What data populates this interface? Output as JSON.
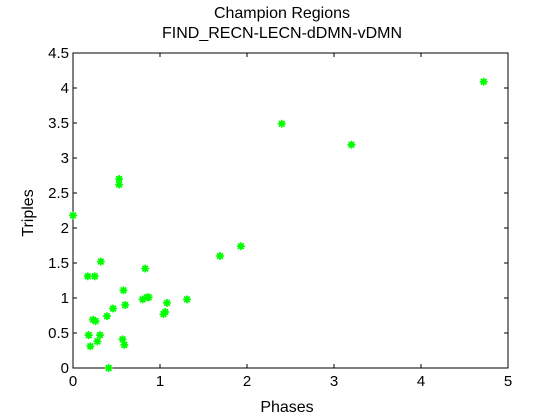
{
  "chart_data": {
    "type": "scatter",
    "title": "Champion Regions",
    "subtitle": "FIND_RECN-LECN-dDMN-vDMN",
    "xlabel": "Phases",
    "ylabel": "Triples",
    "xlim": [
      0,
      5
    ],
    "ylim": [
      0,
      4.5
    ],
    "xticks": [
      0,
      1,
      2,
      3,
      4,
      5
    ],
    "yticks": [
      0,
      0.5,
      1,
      1.5,
      2,
      2.5,
      3,
      3.5,
      4,
      4.5
    ],
    "xtick_labels": [
      "0",
      "1",
      "2",
      "3",
      "4",
      "5"
    ],
    "ytick_labels": [
      "0",
      "0.5",
      "1",
      "1.5",
      "2",
      "2.5",
      "3",
      "3.5",
      "4",
      "4.5"
    ],
    "grid": false,
    "marker": "asterisk",
    "color": "#00ff00",
    "series": [
      {
        "x": [
          0.0,
          0.17,
          0.25,
          0.32,
          0.53,
          0.53,
          0.2,
          0.26,
          0.23,
          0.18,
          0.31,
          0.28,
          0.18,
          0.41,
          0.39,
          0.46,
          0.6,
          0.58,
          0.8,
          0.83,
          0.87,
          0.57,
          0.59,
          0.85,
          1.04,
          1.06,
          1.08,
          1.31,
          1.69,
          1.93,
          2.4,
          3.2,
          4.72
        ],
        "y": [
          2.18,
          1.31,
          1.31,
          1.52,
          2.7,
          2.62,
          0.31,
          0.67,
          0.69,
          0.47,
          0.47,
          0.38,
          0.47,
          0.0,
          0.74,
          0.85,
          0.9,
          1.11,
          0.98,
          1.42,
          1.01,
          0.41,
          0.33,
          1.01,
          0.77,
          0.8,
          0.93,
          0.98,
          1.6,
          1.74,
          3.49,
          3.19,
          4.09
        ]
      }
    ]
  }
}
